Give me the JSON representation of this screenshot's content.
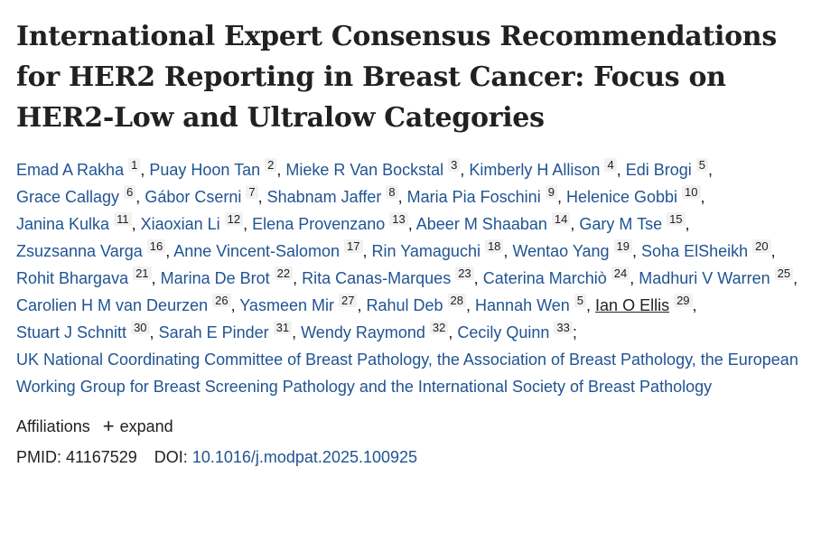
{
  "article": {
    "title": "International Expert Consensus Recommendations for HER2 Reporting in Breast Cancer: Focus on HER2-Low and Ultralow Categories"
  },
  "authors": [
    {
      "name": "Emad A Rakha",
      "ref": "1"
    },
    {
      "name": "Puay Hoon Tan",
      "ref": "2"
    },
    {
      "name": "Mieke R Van Bockstal",
      "ref": "3"
    },
    {
      "name": "Kimberly H Allison",
      "ref": "4"
    },
    {
      "name": "Edi Brogi",
      "ref": "5"
    },
    {
      "name": "Grace Callagy",
      "ref": "6"
    },
    {
      "name": "Gábor Cserni",
      "ref": "7"
    },
    {
      "name": "Shabnam Jaffer",
      "ref": "8"
    },
    {
      "name": "Maria Pia Foschini",
      "ref": "9"
    },
    {
      "name": "Helenice Gobbi",
      "ref": "10"
    },
    {
      "name": "Janina Kulka",
      "ref": "11"
    },
    {
      "name": "Xiaoxian Li",
      "ref": "12"
    },
    {
      "name": "Elena Provenzano",
      "ref": "13"
    },
    {
      "name": "Abeer M Shaaban",
      "ref": "14"
    },
    {
      "name": "Gary M Tse",
      "ref": "15"
    },
    {
      "name": "Zsuzsanna Varga",
      "ref": "16"
    },
    {
      "name": "Anne Vincent-Salomon",
      "ref": "17"
    },
    {
      "name": "Rin Yamaguchi",
      "ref": "18"
    },
    {
      "name": "Wentao Yang",
      "ref": "19"
    },
    {
      "name": "Soha ElSheikh",
      "ref": "20"
    },
    {
      "name": "Rohit Bhargava",
      "ref": "21"
    },
    {
      "name": "Marina De Brot",
      "ref": "22"
    },
    {
      "name": "Rita Canas-Marques",
      "ref": "23"
    },
    {
      "name": "Caterina Marchiò",
      "ref": "24"
    },
    {
      "name": "Madhuri V Warren",
      "ref": "25"
    },
    {
      "name": "Carolien H M van Deurzen",
      "ref": "26"
    },
    {
      "name": "Yasmeen Mir",
      "ref": "27"
    },
    {
      "name": "Rahul Deb",
      "ref": "28"
    },
    {
      "name": "Hannah Wen",
      "ref": "5"
    },
    {
      "name": "Ian O Ellis",
      "ref": "29"
    },
    {
      "name": "Stuart J Schnitt",
      "ref": "30"
    },
    {
      "name": "Sarah E Pinder",
      "ref": "31"
    },
    {
      "name": "Wendy Raymond",
      "ref": "32"
    },
    {
      "name": "Cecily Quinn",
      "ref": "33"
    }
  ],
  "authors_separator": ",",
  "authors_terminator": ";",
  "collective_author": "UK National Coordinating Committee of Breast Pathology, the Association of Breast Pathology, the European Working Group for Breast Screening Pathology and the International Society of Breast Pathology",
  "affiliations": {
    "label": "Affiliations",
    "expand_icon": "plus-icon",
    "expand_label": "expand"
  },
  "identifiers": {
    "pmid_label": "PMID:",
    "pmid": "41167529",
    "doi_label": "DOI:",
    "doi": "10.1016/j.modpat.2025.100925"
  },
  "colors": {
    "link": "#205493",
    "text": "#212121",
    "ref_badge_bg": "#f1f1f1"
  }
}
